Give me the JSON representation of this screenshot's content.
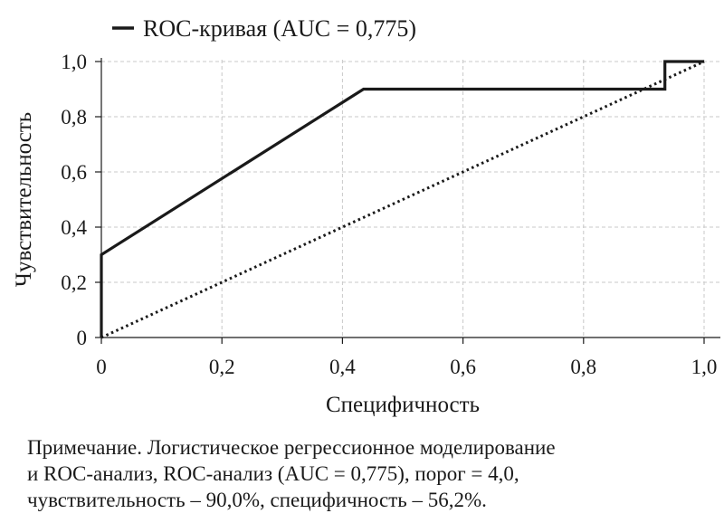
{
  "chart_data": {
    "type": "line",
    "xlabel": "Специфичность",
    "ylabel": "Чувствительность",
    "xlim": [
      0,
      1.0
    ],
    "ylim": [
      0,
      1.0
    ],
    "x_ticks": [
      "0",
      "0,2",
      "0,4",
      "0,6",
      "0,8",
      "1,0"
    ],
    "y_ticks": [
      "0",
      "0,2",
      "0,4",
      "0,6",
      "0,8",
      "1,0"
    ],
    "x_tick_values": [
      0,
      0.2,
      0.4,
      0.6,
      0.8,
      1.0
    ],
    "y_tick_values": [
      0,
      0.2,
      0.4,
      0.6,
      0.8,
      1.0
    ],
    "grid": true,
    "legend_position": "top-left",
    "series": [
      {
        "name": "ROC-кривая (AUC = 0,775)",
        "style": "solid",
        "color": "#1a1a1a",
        "x": [
          0,
          0,
          0.435,
          0.935,
          0.935,
          1.0
        ],
        "y": [
          0,
          0.3,
          0.9,
          0.9,
          1.0,
          1.0
        ]
      },
      {
        "style": "dotted",
        "color": "#1a1a1a",
        "x": [
          0,
          1.0
        ],
        "y": [
          0,
          1.0
        ]
      }
    ]
  },
  "note": {
    "lines": [
      "Примечание. Логистическое регрессионное моделирование",
      "и ROC-анализ, ROC-анализ (AUC = 0,775), порог = 4,0,",
      "чувствительность – 90,0%, специфичность – 56,2%."
    ]
  }
}
